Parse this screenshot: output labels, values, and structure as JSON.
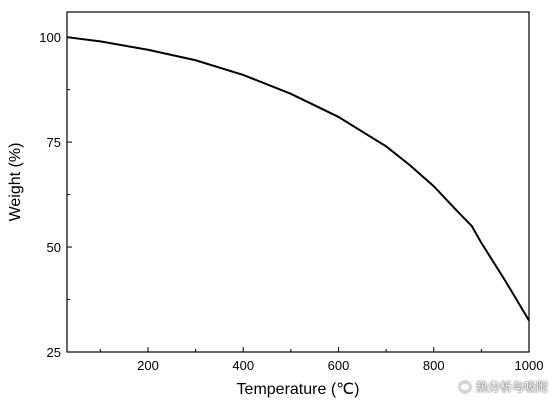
{
  "chart_data": {
    "type": "line",
    "title": "",
    "xlabel": "Temperature (℃)",
    "ylabel": "Weight (%)",
    "xlim": [
      30,
      1000
    ],
    "ylim": [
      25,
      106
    ],
    "xticks": [
      200,
      400,
      600,
      800,
      1000
    ],
    "yticks": [
      25,
      50,
      75,
      100
    ],
    "grid": false,
    "legend": "none",
    "line_color": "#000000",
    "series": [
      {
        "x": [
          30,
          100,
          200,
          300,
          400,
          500,
          600,
          700,
          750,
          800,
          850,
          880,
          900,
          950,
          1000
        ],
        "values": [
          100,
          99,
          97,
          94.5,
          91,
          86.5,
          81,
          74,
          69.5,
          64.5,
          58.5,
          55,
          51,
          42,
          32.5
        ]
      }
    ]
  },
  "watermark": {
    "text": "热分析与吸附",
    "icon": "wechat-icon"
  }
}
